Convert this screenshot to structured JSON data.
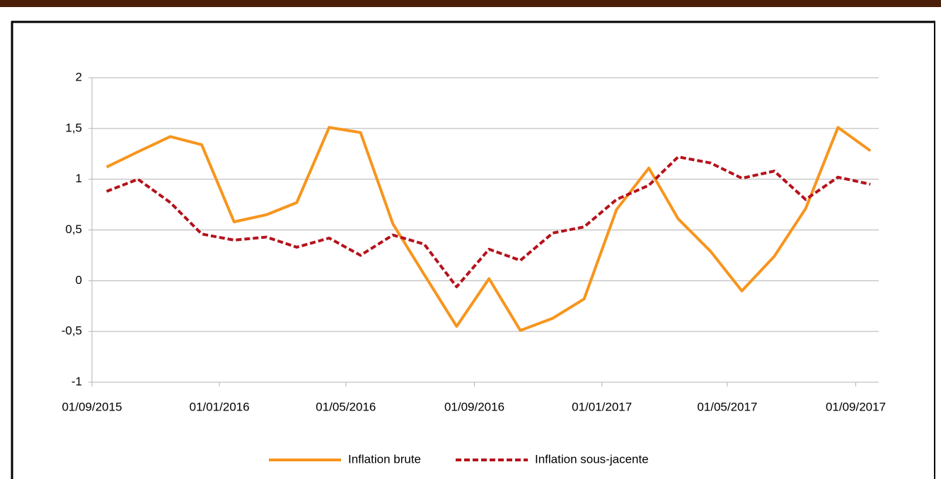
{
  "chart_data": {
    "type": "line",
    "x": [
      "15/09/2015",
      "15/10/2015",
      "15/11/2015",
      "15/12/2015",
      "15/01/2016",
      "15/02/2016",
      "15/03/2016",
      "15/04/2016",
      "15/05/2016",
      "15/06/2016",
      "15/07/2016",
      "15/08/2016",
      "15/09/2016",
      "15/10/2016",
      "15/11/2016",
      "15/12/2016",
      "15/01/2017",
      "15/02/2017",
      "15/03/2017",
      "15/04/2017",
      "15/05/2017",
      "15/06/2017",
      "15/07/2017",
      "15/08/2017",
      "15/09/2017"
    ],
    "series": [
      {
        "name": "Inflation brute",
        "color": "#f7951d",
        "style": "solid",
        "values": [
          1.12,
          1.27,
          1.42,
          1.34,
          0.58,
          0.65,
          0.77,
          1.51,
          1.46,
          0.56,
          0.06,
          -0.45,
          0.02,
          -0.49,
          -0.37,
          -0.18,
          0.7,
          1.11,
          0.61,
          0.29,
          -0.1,
          0.24,
          0.71,
          1.51,
          1.28
        ]
      },
      {
        "name": "Inflation sous-jacente",
        "color": "#b5121b",
        "style": "dashed",
        "values": [
          0.88,
          1.0,
          0.77,
          0.46,
          0.4,
          0.43,
          0.33,
          0.42,
          0.25,
          0.45,
          0.36,
          -0.06,
          0.31,
          0.2,
          0.47,
          0.53,
          0.8,
          0.94,
          1.22,
          1.16,
          1.01,
          1.08,
          0.8,
          1.02,
          0.95
        ]
      }
    ],
    "xlim": [
      "01/09/2015",
      "23/09/2017"
    ],
    "xticks": [
      "01/09/2015",
      "01/01/2016",
      "01/05/2016",
      "01/09/2016",
      "01/01/2017",
      "01/05/2017",
      "01/09/2017"
    ],
    "ylim": [
      -1,
      2
    ],
    "yticks": [
      -1,
      {
        "value": -0.5,
        "label": "-0,5"
      },
      0,
      {
        "value": 0.5,
        "label": "0,5"
      },
      1,
      {
        "value": 1.5,
        "label": "1,5"
      },
      2
    ],
    "grid": true,
    "legend": "bottom"
  }
}
